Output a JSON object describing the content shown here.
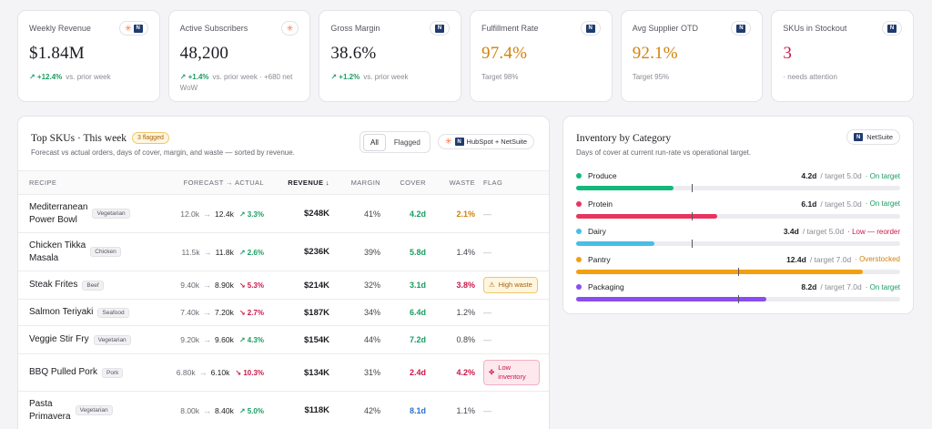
{
  "kpis": [
    {
      "label": "Weekly Revenue",
      "value": "$1.84M",
      "value_color": "default",
      "delta": "↗ +12.4%",
      "note": "vs. prior week",
      "source": "hubspot+netsuite"
    },
    {
      "label": "Active Subscribers",
      "value": "48,200",
      "value_color": "default",
      "delta": "↗ +1.4%",
      "note": "vs. prior week · +680 net WoW",
      "source": "hubspot"
    },
    {
      "label": "Gross Margin",
      "value": "38.6%",
      "value_color": "default",
      "delta": "↗ +1.2%",
      "note": "vs. prior week",
      "source": "netsuite"
    },
    {
      "label": "Fulfillment Rate",
      "value": "97.4%",
      "value_color": "orange",
      "delta": "",
      "note": "Target 98%",
      "source": "netsuite"
    },
    {
      "label": "Avg Supplier OTD",
      "value": "92.1%",
      "value_color": "orange",
      "delta": "",
      "note": "Target 95%",
      "source": "netsuite"
    },
    {
      "label": "SKUs in Stockout",
      "value": "3",
      "value_color": "red",
      "delta": "",
      "note": "· needs attention",
      "source": "netsuite"
    }
  ],
  "sku_panel": {
    "title": "Top SKUs · This week",
    "flag_count_label": "3 flagged",
    "subtitle": "Forecast vs actual orders, days of cover, margin, and waste — sorted by revenue.",
    "filters": [
      "All",
      "Flagged"
    ],
    "active_filter": "All",
    "source_label": "HubSpot + NetSuite",
    "columns": {
      "recipe": "RECIPE",
      "forecast": "FORECAST → ACTUAL",
      "revenue": "REVENUE ↓",
      "margin": "MARGIN",
      "cover": "COVER",
      "waste": "WASTE",
      "flag": "FLAG"
    },
    "rows": [
      {
        "name_line1": "Mediterranean",
        "name_line2": "Power Bowl",
        "tag": "Vegetarian",
        "forecast": "12.0k",
        "actual": "12.4k",
        "delta": "↗ 3.3%",
        "delta_dir": "pos",
        "revenue": "$248K",
        "margin": "41%",
        "cover": "4.2d",
        "cover_color": "green",
        "waste": "2.1%",
        "waste_color": "orange",
        "flag": "—",
        "flag_type": "none"
      },
      {
        "name_line1": "Chicken Tikka",
        "name_line2": "Masala",
        "tag": "Chicken",
        "forecast": "11.5k",
        "actual": "11.8k",
        "delta": "↗ 2.6%",
        "delta_dir": "pos",
        "revenue": "$236K",
        "margin": "39%",
        "cover": "5.8d",
        "cover_color": "green",
        "waste": "1.4%",
        "waste_color": "default",
        "flag": "—",
        "flag_type": "none"
      },
      {
        "name_line1": "Steak Frites",
        "name_line2": "",
        "tag": "Beef",
        "forecast": "9.40k",
        "actual": "8.90k",
        "delta": "↘ 5.3%",
        "delta_dir": "neg",
        "revenue": "$214K",
        "margin": "32%",
        "cover": "3.1d",
        "cover_color": "green",
        "waste": "3.8%",
        "waste_color": "red",
        "flag": "High waste",
        "flag_type": "orange"
      },
      {
        "name_line1": "Salmon Teriyaki",
        "name_line2": "",
        "tag": "Seafood",
        "forecast": "7.40k",
        "actual": "7.20k",
        "delta": "↘ 2.7%",
        "delta_dir": "neg",
        "revenue": "$187K",
        "margin": "34%",
        "cover": "6.4d",
        "cover_color": "green",
        "waste": "1.2%",
        "waste_color": "default",
        "flag": "—",
        "flag_type": "none"
      },
      {
        "name_line1": "Veggie Stir Fry",
        "name_line2": "",
        "tag": "Vegetarian",
        "forecast": "9.20k",
        "actual": "9.60k",
        "delta": "↗ 4.3%",
        "delta_dir": "pos",
        "revenue": "$154K",
        "margin": "44%",
        "cover": "7.2d",
        "cover_color": "green",
        "waste": "0.8%",
        "waste_color": "default",
        "flag": "—",
        "flag_type": "none"
      },
      {
        "name_line1": "BBQ Pulled Pork",
        "name_line2": "",
        "tag": "Pork",
        "forecast": "6.80k",
        "actual": "6.10k",
        "delta": "↘ 10.3%",
        "delta_dir": "neg",
        "revenue": "$134K",
        "margin": "31%",
        "cover": "2.4d",
        "cover_color": "red",
        "waste": "4.2%",
        "waste_color": "red",
        "flag": "Low inventory",
        "flag_type": "red"
      },
      {
        "name_line1": "Pasta",
        "name_line2": "Primavera",
        "tag": "Vegetarian",
        "forecast": "8.00k",
        "actual": "8.40k",
        "delta": "↗ 5.0%",
        "delta_dir": "pos",
        "revenue": "$118K",
        "margin": "42%",
        "cover": "8.1d",
        "cover_color": "blue",
        "waste": "1.1%",
        "waste_color": "default",
        "flag": "—",
        "flag_type": "none"
      }
    ]
  },
  "inventory": {
    "title": "Inventory by Category",
    "subtitle": "Days of cover at current run-rate vs operational target.",
    "source_label": "NetSuite",
    "scale_max_days": 14,
    "categories": [
      {
        "name": "Produce",
        "days": 4.2,
        "days_label": "4.2d",
        "target": 5.0,
        "target_label": "/ target 5.0d",
        "status": "· On target",
        "color": "#14b87a",
        "status_color": "green"
      },
      {
        "name": "Protein",
        "days": 6.1,
        "days_label": "6.1d",
        "target": 5.0,
        "target_label": "/ target 5.0d",
        "status": "· On target",
        "color": "#e8345e",
        "status_color": "green"
      },
      {
        "name": "Dairy",
        "days": 3.4,
        "days_label": "3.4d",
        "target": 5.0,
        "target_label": "/ target 5.0d",
        "status": "· Low — reorder",
        "color": "#46bfe8",
        "status_color": "red"
      },
      {
        "name": "Pantry",
        "days": 12.4,
        "days_label": "12.4d",
        "target": 7.0,
        "target_label": "/ target 7.0d",
        "status": "· Overstocked",
        "color": "#f2a00f",
        "status_color": "orange"
      },
      {
        "name": "Packaging",
        "days": 8.2,
        "days_label": "8.2d",
        "target": 7.0,
        "target_label": "/ target 7.0d",
        "status": "· On target",
        "color": "#8a4df0",
        "status_color": "green"
      }
    ]
  }
}
